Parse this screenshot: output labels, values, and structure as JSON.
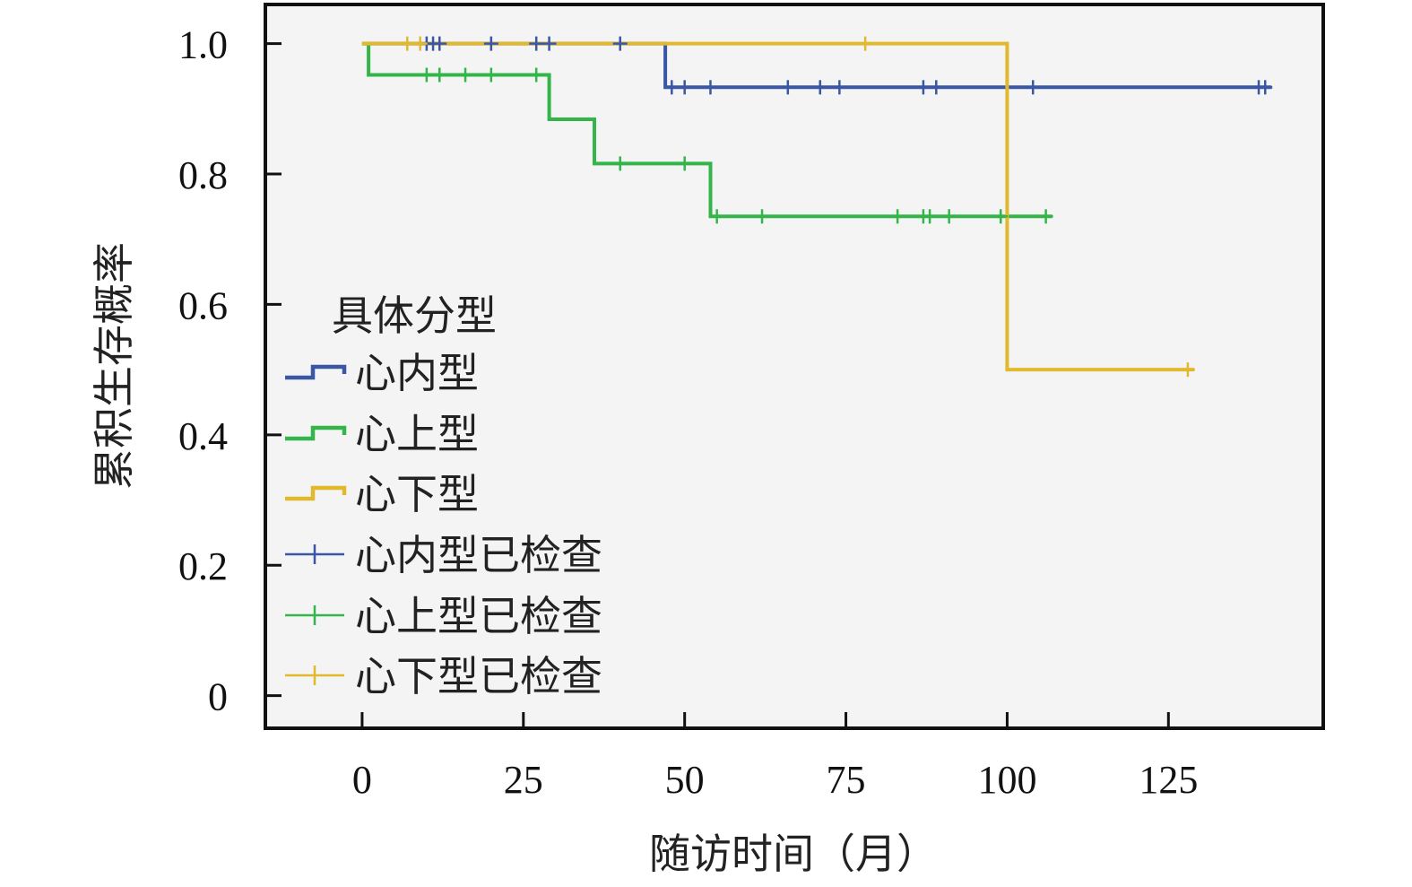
{
  "chart_data": {
    "type": "line",
    "subtype": "kaplan-meier-step",
    "xlabel": "随访时间（月）",
    "ylabel": "累积生存概率",
    "xlim": [
      -15,
      149
    ],
    "ylim": [
      -0.05,
      1.06
    ],
    "xticks": [
      0,
      25,
      50,
      75,
      100,
      125
    ],
    "yticks": [
      0,
      0.2,
      0.4,
      0.6,
      0.8,
      1.0
    ],
    "ytick_labels": [
      "0",
      "0.2",
      "0.4",
      "0.6",
      "0.8",
      "1.0"
    ],
    "grid": false,
    "background": "#f4f4f4",
    "legend": {
      "title": "具体分型",
      "placement": "left"
    },
    "series": [
      {
        "name": "心内型",
        "color": "#3a57a6",
        "steps": [
          [
            0,
            1.0
          ],
          [
            47,
            1.0
          ],
          [
            47,
            0.933
          ],
          [
            141,
            0.933
          ]
        ],
        "censor_name": "心内型已检查",
        "censored": [
          [
            10,
            1.0
          ],
          [
            11,
            1.0
          ],
          [
            12,
            1.0
          ],
          [
            20,
            1.0
          ],
          [
            27,
            1.0
          ],
          [
            29,
            1.0
          ],
          [
            40,
            1.0
          ],
          [
            48,
            0.933
          ],
          [
            50,
            0.933
          ],
          [
            54,
            0.933
          ],
          [
            66,
            0.933
          ],
          [
            71,
            0.933
          ],
          [
            74,
            0.933
          ],
          [
            87,
            0.933
          ],
          [
            89,
            0.933
          ],
          [
            104,
            0.933
          ],
          [
            139,
            0.933
          ],
          [
            140,
            0.933
          ]
        ]
      },
      {
        "name": "心上型",
        "color": "#33b54a",
        "steps": [
          [
            0,
            1.0
          ],
          [
            1,
            1.0
          ],
          [
            1,
            0.952
          ],
          [
            29,
            0.952
          ],
          [
            29,
            0.884
          ],
          [
            36,
            0.884
          ],
          [
            36,
            0.816
          ],
          [
            54,
            0.816
          ],
          [
            54,
            0.735
          ],
          [
            107,
            0.735
          ]
        ],
        "censor_name": "心上型已检查",
        "censored": [
          [
            10,
            0.952
          ],
          [
            12,
            0.952
          ],
          [
            16,
            0.952
          ],
          [
            20,
            0.952
          ],
          [
            27,
            0.952
          ],
          [
            40,
            0.816
          ],
          [
            50,
            0.816
          ],
          [
            55,
            0.735
          ],
          [
            62,
            0.735
          ],
          [
            83,
            0.735
          ],
          [
            87,
            0.735
          ],
          [
            88,
            0.735
          ],
          [
            91,
            0.735
          ],
          [
            99,
            0.735
          ],
          [
            106,
            0.735
          ]
        ]
      },
      {
        "name": "心下型",
        "color": "#e2b92e",
        "steps": [
          [
            0,
            1.0
          ],
          [
            100,
            1.0
          ],
          [
            100,
            0.5
          ],
          [
            129,
            0.5
          ]
        ],
        "censor_name": "心下型已检查",
        "censored": [
          [
            7,
            1.0
          ],
          [
            9,
            1.0
          ],
          [
            78,
            1.0
          ],
          [
            128,
            0.5
          ]
        ]
      }
    ]
  }
}
